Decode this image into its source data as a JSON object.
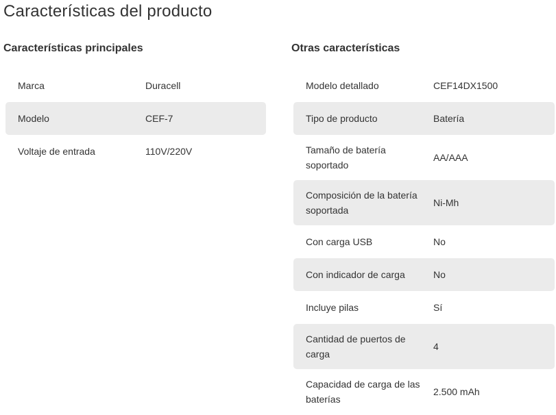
{
  "page": {
    "title": "Características del producto"
  },
  "colors": {
    "stripe": "#ebebeb",
    "text": "#333333",
    "background": "#ffffff"
  },
  "sections": [
    {
      "heading": "Características principales",
      "rows": [
        {
          "label": "Marca",
          "value": "Duracell"
        },
        {
          "label": "Modelo",
          "value": "CEF-7"
        },
        {
          "label": "Voltaje de entrada",
          "value": "110V/220V"
        }
      ]
    },
    {
      "heading": "Otras características",
      "rows": [
        {
          "label": "Modelo detallado",
          "value": "CEF14DX1500"
        },
        {
          "label": "Tipo de producto",
          "value": "Batería"
        },
        {
          "label": "Tamaño de batería soportado",
          "value": "AA/AAA"
        },
        {
          "label": "Composición de la batería soportada",
          "value": "Ni-Mh"
        },
        {
          "label": "Con carga USB",
          "value": "No"
        },
        {
          "label": "Con indicador de carga",
          "value": "No"
        },
        {
          "label": "Incluye pilas",
          "value": "Sí"
        },
        {
          "label": "Cantidad de puertos de carga",
          "value": "4"
        },
        {
          "label": "Capacidad de carga de las baterías",
          "value": "2.500 mAh"
        }
      ]
    }
  ]
}
